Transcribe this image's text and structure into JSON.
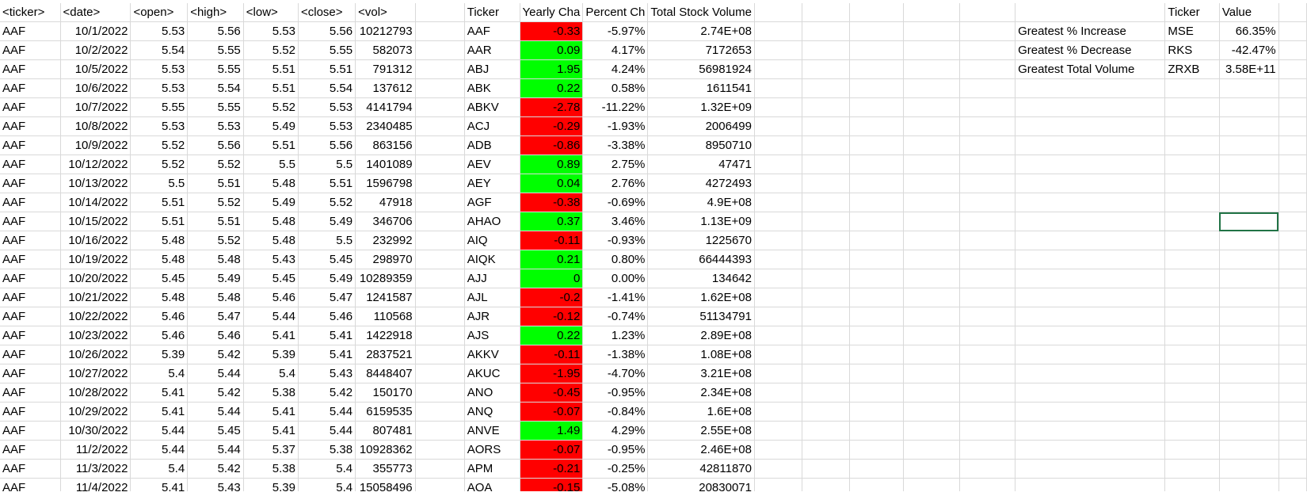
{
  "colors": {
    "positive": "#00ff00",
    "negative": "#ff0000",
    "selection": "#217346",
    "gridline": "#d9d9d9"
  },
  "raw_headers": [
    "<ticker>",
    "<date>",
    "<open>",
    "<high>",
    "<low>",
    "<close>",
    "<vol>"
  ],
  "raw_rows": [
    [
      "AAF",
      "10/1/2022",
      "5.53",
      "5.56",
      "5.53",
      "5.56",
      "10212793"
    ],
    [
      "AAF",
      "10/2/2022",
      "5.54",
      "5.55",
      "5.52",
      "5.55",
      "582073"
    ],
    [
      "AAF",
      "10/5/2022",
      "5.53",
      "5.55",
      "5.51",
      "5.51",
      "791312"
    ],
    [
      "AAF",
      "10/6/2022",
      "5.53",
      "5.54",
      "5.51",
      "5.54",
      "137612"
    ],
    [
      "AAF",
      "10/7/2022",
      "5.55",
      "5.55",
      "5.52",
      "5.53",
      "4141794"
    ],
    [
      "AAF",
      "10/8/2022",
      "5.53",
      "5.53",
      "5.49",
      "5.53",
      "2340485"
    ],
    [
      "AAF",
      "10/9/2022",
      "5.52",
      "5.56",
      "5.51",
      "5.56",
      "863156"
    ],
    [
      "AAF",
      "10/12/2022",
      "5.52",
      "5.52",
      "5.5",
      "5.5",
      "1401089"
    ],
    [
      "AAF",
      "10/13/2022",
      "5.5",
      "5.51",
      "5.48",
      "5.51",
      "1596798"
    ],
    [
      "AAF",
      "10/14/2022",
      "5.51",
      "5.52",
      "5.49",
      "5.52",
      "47918"
    ],
    [
      "AAF",
      "10/15/2022",
      "5.51",
      "5.51",
      "5.48",
      "5.49",
      "346706"
    ],
    [
      "AAF",
      "10/16/2022",
      "5.48",
      "5.52",
      "5.48",
      "5.5",
      "232992"
    ],
    [
      "AAF",
      "10/19/2022",
      "5.48",
      "5.48",
      "5.43",
      "5.45",
      "298970"
    ],
    [
      "AAF",
      "10/20/2022",
      "5.45",
      "5.49",
      "5.45",
      "5.49",
      "10289359"
    ],
    [
      "AAF",
      "10/21/2022",
      "5.48",
      "5.48",
      "5.46",
      "5.47",
      "1241587"
    ],
    [
      "AAF",
      "10/22/2022",
      "5.46",
      "5.47",
      "5.44",
      "5.46",
      "110568"
    ],
    [
      "AAF",
      "10/23/2022",
      "5.46",
      "5.46",
      "5.41",
      "5.41",
      "1422918"
    ],
    [
      "AAF",
      "10/26/2022",
      "5.39",
      "5.42",
      "5.39",
      "5.41",
      "2837521"
    ],
    [
      "AAF",
      "10/27/2022",
      "5.4",
      "5.44",
      "5.4",
      "5.43",
      "8448407"
    ],
    [
      "AAF",
      "10/28/2022",
      "5.41",
      "5.42",
      "5.38",
      "5.42",
      "150170"
    ],
    [
      "AAF",
      "10/29/2022",
      "5.41",
      "5.44",
      "5.41",
      "5.44",
      "6159535"
    ],
    [
      "AAF",
      "10/30/2022",
      "5.44",
      "5.45",
      "5.41",
      "5.44",
      "807481"
    ],
    [
      "AAF",
      "11/2/2022",
      "5.44",
      "5.44",
      "5.37",
      "5.38",
      "10928362"
    ],
    [
      "AAF",
      "11/3/2022",
      "5.4",
      "5.42",
      "5.38",
      "5.4",
      "355773"
    ],
    [
      "AAF",
      "11/4/2022",
      "5.41",
      "5.43",
      "5.39",
      "5.4",
      "15058496"
    ]
  ],
  "summary_headers": [
    "Ticker",
    "Yearly Cha",
    "Percent Ch",
    "Total Stock Volume"
  ],
  "summary_rows": [
    [
      "AAF",
      "-0.33",
      "-5.97%",
      "2.74E+08"
    ],
    [
      "AAR",
      "0.09",
      "4.17%",
      "7172653"
    ],
    [
      "ABJ",
      "1.95",
      "4.24%",
      "56981924"
    ],
    [
      "ABK",
      "0.22",
      "0.58%",
      "1611541"
    ],
    [
      "ABKV",
      "-2.78",
      "-11.22%",
      "1.32E+09"
    ],
    [
      "ACJ",
      "-0.29",
      "-1.93%",
      "2006499"
    ],
    [
      "ADB",
      "-0.86",
      "-3.38%",
      "8950710"
    ],
    [
      "AEV",
      "0.89",
      "2.75%",
      "47471"
    ],
    [
      "AEY",
      "0.04",
      "2.76%",
      "4272493"
    ],
    [
      "AGF",
      "-0.38",
      "-0.69%",
      "4.9E+08"
    ],
    [
      "AHAO",
      "0.37",
      "3.46%",
      "1.13E+09"
    ],
    [
      "AIQ",
      "-0.11",
      "-0.93%",
      "1225670"
    ],
    [
      "AIQK",
      "0.21",
      "0.80%",
      "66444393"
    ],
    [
      "AJJ",
      "0",
      "0.00%",
      "134642"
    ],
    [
      "AJL",
      "-0.2",
      "-1.41%",
      "1.62E+08"
    ],
    [
      "AJR",
      "-0.12",
      "-0.74%",
      "51134791"
    ],
    [
      "AJS",
      "0.22",
      "1.23%",
      "2.89E+08"
    ],
    [
      "AKKV",
      "-0.11",
      "-1.38%",
      "1.08E+08"
    ],
    [
      "AKUC",
      "-1.95",
      "-4.70%",
      "3.21E+08"
    ],
    [
      "ANO",
      "-0.45",
      "-0.95%",
      "2.34E+08"
    ],
    [
      "ANQ",
      "-0.07",
      "-0.84%",
      "1.6E+08"
    ],
    [
      "ANVE",
      "1.49",
      "4.29%",
      "2.55E+08"
    ],
    [
      "AORS",
      "-0.07",
      "-0.95%",
      "2.46E+08"
    ],
    [
      "APM",
      "-0.21",
      "-0.25%",
      "42811870"
    ],
    [
      "AQA",
      "-0.15",
      "-5.08%",
      "20830071"
    ]
  ],
  "greatest_headers": [
    "Ticker",
    "Value"
  ],
  "greatest_rows": [
    [
      "Greatest % Increase",
      "MSE",
      "66.35%"
    ],
    [
      "Greatest % Decrease",
      "RKS",
      "-42.47%"
    ],
    [
      "Greatest Total Volume",
      "ZRXB",
      "3.58E+11"
    ]
  ]
}
